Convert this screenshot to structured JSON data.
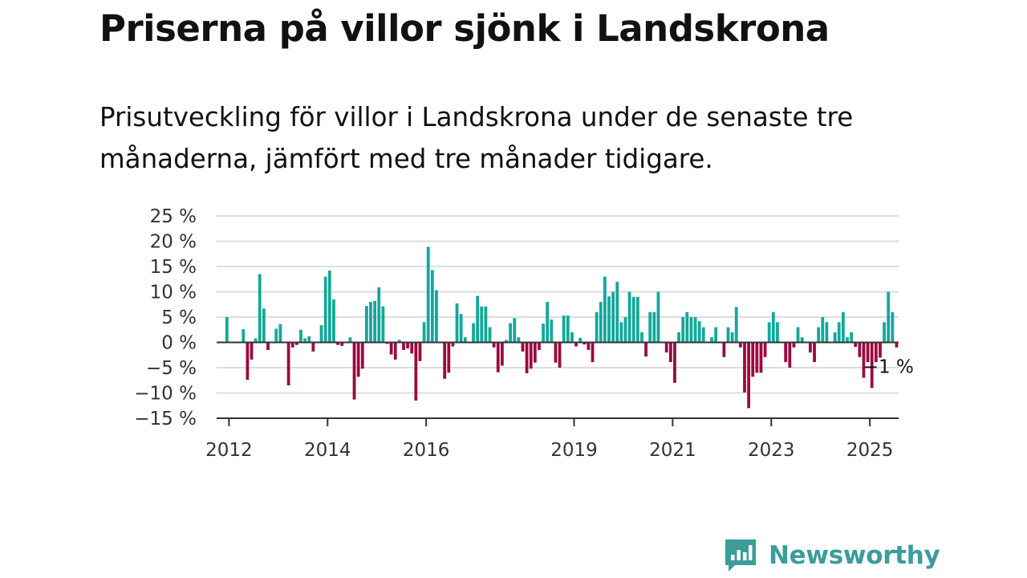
{
  "title": "Priserna på villor sjönk i Landskrona",
  "subtitle": "Prisutveckling för villor i Landskrona under de senaste tre månaderna, jämfört med tre månader tidigare.",
  "brand": {
    "name": "Newsworthy",
    "icon": "newsworthy-logo-icon",
    "color": "#3b9c98"
  },
  "colors": {
    "positive": "#12a89a",
    "negative": "#9b0a3e",
    "grid": "#dddddd",
    "axis": "#333333"
  },
  "chart_data": {
    "type": "bar",
    "xlabel": "",
    "ylabel": "",
    "ylim": [
      -15,
      25
    ],
    "yticks": [
      25,
      20,
      15,
      10,
      5,
      0,
      -5,
      -10,
      -15
    ],
    "ytick_labels": [
      "25 %",
      "20 %",
      "15 %",
      "10 %",
      "5 %",
      "0 %",
      "−5 %",
      "−10 %",
      "−15 %"
    ],
    "xticks": [
      2012,
      2014,
      2016,
      2019,
      2021,
      2023,
      2025
    ],
    "xtick_labels": [
      "2012",
      "2014",
      "2016",
      "2019",
      "2021",
      "2023",
      "2025"
    ],
    "x_start": "2011-10",
    "grid": true,
    "legend": "none",
    "annotation": {
      "text": "−1 %",
      "month": "2025-06",
      "value": -1
    },
    "values": [
      0,
      0,
      5,
      0,
      0,
      0,
      2.6,
      -7.4,
      -3.4,
      0.8,
      13.5,
      6.7,
      -1.5,
      0,
      2.7,
      3.6,
      0,
      -8.5,
      -1,
      -0.5,
      2.5,
      0.8,
      1.2,
      -1.8,
      0,
      3.4,
      13,
      14.2,
      8.5,
      -0.5,
      -0.7,
      0,
      1,
      -11.3,
      -6.8,
      -5.2,
      7.2,
      8,
      8.2,
      10.9,
      7.1,
      -0.3,
      -2.4,
      -3.4,
      0.5,
      -1.5,
      -1.2,
      -2.2,
      -11.5,
      -3.7,
      4,
      18.9,
      14.3,
      10.3,
      0,
      -7.2,
      -6,
      -0.8,
      7.7,
      5.6,
      1,
      0,
      3.8,
      9.2,
      7.1,
      7.1,
      3,
      -1,
      -5.9,
      -4.6,
      0.5,
      3.8,
      4.8,
      1,
      -1.8,
      -6.1,
      -5.2,
      -4,
      -1.5,
      3.7,
      8,
      4.5,
      -4,
      -5,
      5.3,
      5.3,
      2,
      -0.8,
      0.9,
      -0.4,
      -1.5,
      -3.9,
      6,
      8,
      13,
      9.1,
      10,
      12,
      4,
      5,
      10,
      9,
      9,
      2,
      -2.8,
      6,
      6,
      10,
      0,
      -2,
      -3.9,
      -8,
      2,
      5,
      6,
      5,
      5,
      4.2,
      3,
      0,
      1,
      3,
      0,
      -2.9,
      3,
      2,
      7,
      -1,
      -9.9,
      -13,
      -6.8,
      -6,
      -6,
      -2.9,
      4,
      6,
      4,
      0,
      -3.9,
      -5,
      -1,
      3,
      1,
      0,
      -2,
      -3.9,
      3,
      5,
      4,
      0,
      2,
      4,
      6,
      1,
      2,
      -0.9,
      -2.9,
      -7,
      -3.9,
      -9,
      -3.9,
      -3,
      4,
      10,
      6,
      -1
    ]
  }
}
